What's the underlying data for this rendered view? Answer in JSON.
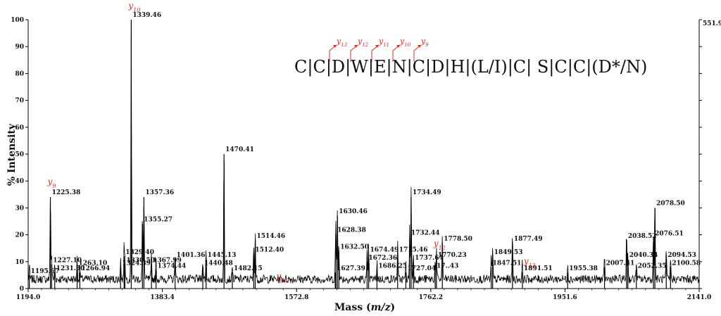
{
  "chart_data": {
    "type": "line",
    "xlabel_main": "Mass (",
    "xlabel_italic": "m/z",
    "xlabel_end": ")",
    "ylabel": "% Intensity",
    "xlim": [
      1194.0,
      2141.0
    ],
    "ylim": [
      0,
      100
    ],
    "x_ticks": [
      "1194.0",
      "1383.4",
      "1572.8",
      "1762.2",
      "1951.6",
      "2141.0"
    ],
    "y_ticks": [
      0,
      10,
      20,
      30,
      40,
      50,
      60,
      70,
      80,
      90,
      100
    ],
    "right_axis_label": "551.9",
    "noise_level": 3.5,
    "peaks": [
      {
        "x": 1195.67,
        "y": 5,
        "label": "1195.67"
      },
      {
        "x": 1225.38,
        "y": 34,
        "label": "1225.38"
      },
      {
        "x": 1227.1,
        "y": 9,
        "label": "1227.10"
      },
      {
        "x": 1231.5,
        "y": 6,
        "label": "1231.50"
      },
      {
        "x": 1263.1,
        "y": 8,
        "label": "1263.10"
      },
      {
        "x": 1266.94,
        "y": 6,
        "label": "1266.94"
      },
      {
        "x": 1324.39,
        "y": 8,
        "label": "1324.39"
      },
      {
        "x": 1329.4,
        "y": 12,
        "label": "1329.40"
      },
      {
        "x": 1330.5,
        "y": 9,
        "label": "1330.50"
      },
      {
        "x": 1339.46,
        "y": 100,
        "label": "1339.46"
      },
      {
        "x": 1355.27,
        "y": 24,
        "label": "1355.27"
      },
      {
        "x": 1357.36,
        "y": 34,
        "label": "1357.36"
      },
      {
        "x": 1367.99,
        "y": 9,
        "label": "1367.99"
      },
      {
        "x": 1374.44,
        "y": 7,
        "label": "1374.44"
      },
      {
        "x": 1401.36,
        "y": 11,
        "label": "1401.36"
      },
      {
        "x": 1440.48,
        "y": 8,
        "label": "1440.48"
      },
      {
        "x": 1445.13,
        "y": 11,
        "label": "1445.13"
      },
      {
        "x": 1470.41,
        "y": 50,
        "label": "1470.41"
      },
      {
        "x": 1482.15,
        "y": 6,
        "label": "1482.15"
      },
      {
        "x": 1512.4,
        "y": 13,
        "label": "1512.40"
      },
      {
        "x": 1514.46,
        "y": 18,
        "label": "1514.46"
      },
      {
        "x": 1627.39,
        "y": 6,
        "label": "1627.39"
      },
      {
        "x": 1628.38,
        "y": 20,
        "label": "1628.38"
      },
      {
        "x": 1630.46,
        "y": 27,
        "label": "1630.46"
      },
      {
        "x": 1632.5,
        "y": 14,
        "label": "1632.50"
      },
      {
        "x": 1672.36,
        "y": 10,
        "label": "1672.36"
      },
      {
        "x": 1674.49,
        "y": 13,
        "label": "1674.49"
      },
      {
        "x": 1686.25,
        "y": 7,
        "label": "1686.25"
      },
      {
        "x": 1715.46,
        "y": 13,
        "label": "1715.46"
      },
      {
        "x": 1727.04,
        "y": 6,
        "label": "1727.04"
      },
      {
        "x": 1732.44,
        "y": 19,
        "label": "1732.44"
      },
      {
        "x": 1734.49,
        "y": 34,
        "label": "1734.49"
      },
      {
        "x": 1737.64,
        "y": 10,
        "label": "1737.64"
      },
      {
        "x": 1768.43,
        "y": 7,
        "label": "17..43"
      },
      {
        "x": 1770.23,
        "y": 11,
        "label": "1770.23"
      },
      {
        "x": 1778.5,
        "y": 17,
        "label": "1778.50"
      },
      {
        "x": 1847.51,
        "y": 8,
        "label": "1847.51"
      },
      {
        "x": 1849.53,
        "y": 12,
        "label": "1849.53"
      },
      {
        "x": 1877.49,
        "y": 17,
        "label": "1877.49"
      },
      {
        "x": 1891.51,
        "y": 6,
        "label": "1891.51"
      },
      {
        "x": 1955.38,
        "y": 6,
        "label": "1955.38"
      },
      {
        "x": 2007.41,
        "y": 8,
        "label": "2007.41"
      },
      {
        "x": 2038.52,
        "y": 18,
        "label": "2038.52"
      },
      {
        "x": 2040.34,
        "y": 11,
        "label": "2040.34"
      },
      {
        "x": 2052.35,
        "y": 7,
        "label": "2052.35"
      },
      {
        "x": 2076.51,
        "y": 19,
        "label": "2076.51"
      },
      {
        "x": 2078.5,
        "y": 30,
        "label": "2078.50"
      },
      {
        "x": 2094.53,
        "y": 11,
        "label": "2094.53"
      },
      {
        "x": 2100.58,
        "y": 8,
        "label": "2100.58"
      }
    ],
    "ion_annotations": [
      {
        "label": "y9",
        "x": 1225.38
      },
      {
        "label": "y10",
        "x": 1339.46
      },
      {
        "label": "y11",
        "x": 1512.4
      },
      {
        "label": "y12",
        "x": 1770.23
      },
      {
        "label": "y13",
        "x": 1891.51
      }
    ],
    "sequence": {
      "text": "C|C|D|W|E|N|C|D|H|(L/I)|C| S|C|C|(D*/N)",
      "fragment_ions": [
        "y13",
        "y12",
        "y11",
        "y10",
        "y9"
      ]
    },
    "colors": {
      "spectrum": "#000000",
      "ion": "#e8281e",
      "axis": "#000000"
    }
  }
}
